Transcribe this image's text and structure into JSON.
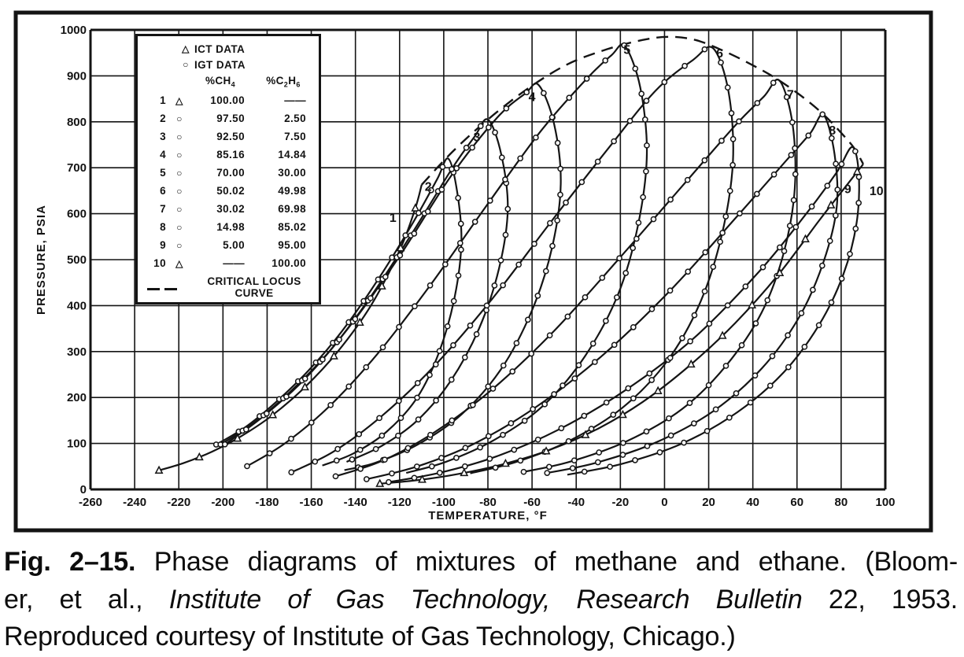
{
  "caption": {
    "line1_bold": "Fig. 2–15.",
    "line1_rest": "Phase diagrams of mixtures of methane and ethane. (Bloom-",
    "line2_pre": "er, et al., ",
    "line2_italic": "Institute of Gas Technology, Research Bulletin",
    "line2_post": " 22, 1953.",
    "line3": "Reproduced courtesy of Institute of Gas Technology, Chicago.)"
  },
  "chart_data": {
    "type": "line",
    "title": "Phase diagrams of mixtures of methane and ethane",
    "xlabel": "TEMPERATURE, °F",
    "ylabel": "PRESSURE, PSIA",
    "xlim": [
      -260,
      100
    ],
    "ylim": [
      0,
      1000
    ],
    "x_ticks": [
      -260,
      -240,
      -220,
      -200,
      -180,
      -160,
      -140,
      -120,
      -100,
      -80,
      -60,
      -40,
      -20,
      0,
      20,
      40,
      60,
      80,
      100
    ],
    "y_ticks": [
      0,
      100,
      200,
      300,
      400,
      500,
      600,
      700,
      800,
      900,
      1000
    ],
    "grid": true,
    "ink_color": "#141414",
    "legend": {
      "entries": [
        {
          "symbol": "triangle",
          "label": "ICT DATA"
        },
        {
          "symbol": "circle",
          "label": "IGT DATA"
        }
      ],
      "col1": {
        "pre": "%CH",
        "sub": "4"
      },
      "col2": {
        "pre": "%C",
        "sub1": "2",
        "mid": "H",
        "sub2": "6"
      },
      "rows": [
        {
          "num": "1",
          "symbol": "triangle",
          "ch4": "100.00",
          "c2h6": "——"
        },
        {
          "num": "2",
          "symbol": "circle",
          "ch4": "97.50",
          "c2h6": "2.50"
        },
        {
          "num": "3",
          "symbol": "circle",
          "ch4": "92.50",
          "c2h6": "7.50"
        },
        {
          "num": "4",
          "symbol": "circle",
          "ch4": "85.16",
          "c2h6": "14.84"
        },
        {
          "num": "5",
          "symbol": "circle",
          "ch4": "70.00",
          "c2h6": "30.00"
        },
        {
          "num": "6",
          "symbol": "circle",
          "ch4": "50.02",
          "c2h6": "49.98"
        },
        {
          "num": "7",
          "symbol": "circle",
          "ch4": "30.02",
          "c2h6": "69.98"
        },
        {
          "num": "8",
          "symbol": "circle",
          "ch4": "14.98",
          "c2h6": "85.02"
        },
        {
          "num": "9",
          "symbol": "circle",
          "ch4": "5.00",
          "c2h6": "95.00"
        },
        {
          "num": "10",
          "symbol": "triangle",
          "ch4": "——",
          "c2h6": "100.00"
        }
      ],
      "locus_label_line1": "CRITICAL LOCUS",
      "locus_label_line2": "CURVE"
    },
    "series": [
      {
        "name": "1",
        "pct_ch4": "100.00",
        "pct_c2h6": null,
        "marker": "triangle",
        "label_pos": [
          -123,
          582
        ],
        "points": [
          [
            -230,
            40
          ],
          [
            -218,
            57
          ],
          [
            -205,
            82
          ],
          [
            -192,
            115
          ],
          [
            -178,
            160
          ],
          [
            -163,
            222
          ],
          [
            -148,
            300
          ],
          [
            -133,
            400
          ],
          [
            -120,
            520
          ],
          [
            -113,
            610
          ],
          [
            -110,
            663
          ]
        ]
      },
      {
        "name": "2",
        "pct_ch4": "97.50",
        "pct_c2h6": "2.50",
        "marker": "circle",
        "label_pos": [
          -107,
          650
        ],
        "points": [
          [
            -204,
            95
          ],
          [
            -190,
            135
          ],
          [
            -176,
            190
          ],
          [
            -161,
            260
          ],
          [
            -146,
            345
          ],
          [
            -130,
            455
          ],
          [
            -114,
            580
          ],
          [
            -103,
            675
          ],
          [
            -98,
            720
          ],
          [
            -94,
            650
          ],
          [
            -92,
            540
          ],
          [
            -95,
            420
          ],
          [
            -102,
            300
          ],
          [
            -112,
            200
          ],
          [
            -126,
            125
          ],
          [
            -141,
            78
          ],
          [
            -155,
            52
          ]
        ]
      },
      {
        "name": "3",
        "pct_ch4": "92.50",
        "pct_c2h6": "7.50",
        "marker": "circle",
        "label_pos": [
          -85,
          758
        ],
        "points": [
          [
            -202,
            95
          ],
          [
            -186,
            145
          ],
          [
            -169,
            215
          ],
          [
            -151,
            305
          ],
          [
            -133,
            420
          ],
          [
            -114,
            560
          ],
          [
            -96,
            700
          ],
          [
            -86,
            768
          ],
          [
            -80,
            805
          ],
          [
            -74,
            730
          ],
          [
            -71,
            610
          ],
          [
            -75,
            480
          ],
          [
            -84,
            350
          ],
          [
            -97,
            235
          ],
          [
            -112,
            150
          ],
          [
            -128,
            95
          ],
          [
            -144,
            60
          ]
        ]
      },
      {
        "name": "4",
        "pct_ch4": "85.16",
        "pct_c2h6": "14.84",
        "marker": "circle",
        "label_pos": [
          -60,
          845
        ],
        "points": [
          [
            -200,
            95
          ],
          [
            -182,
            158
          ],
          [
            -162,
            245
          ],
          [
            -141,
            365
          ],
          [
            -119,
            515
          ],
          [
            -97,
            680
          ],
          [
            -76,
            808
          ],
          [
            -63,
            862
          ],
          [
            -57,
            880
          ],
          [
            -50,
            795
          ],
          [
            -47,
            665
          ],
          [
            -51,
            525
          ],
          [
            -60,
            390
          ],
          [
            -74,
            262
          ],
          [
            -92,
            163
          ],
          [
            -112,
            97
          ],
          [
            -131,
            58
          ],
          [
            -145,
            42
          ]
        ]
      },
      {
        "name": "5",
        "pct_ch4": "70.00",
        "pct_c2h6": "30.00",
        "marker": "circle",
        "label_pos": [
          -17,
          948
        ],
        "points": [
          [
            -190,
            48
          ],
          [
            -172,
            100
          ],
          [
            -152,
            180
          ],
          [
            -130,
            295
          ],
          [
            -106,
            445
          ],
          [
            -81,
            615
          ],
          [
            -56,
            780
          ],
          [
            -35,
            895
          ],
          [
            -24,
            945
          ],
          [
            -18,
            965
          ],
          [
            -11,
            875
          ],
          [
            -8,
            730
          ],
          [
            -12,
            575
          ],
          [
            -21,
            425
          ],
          [
            -36,
            290
          ],
          [
            -55,
            182
          ],
          [
            -77,
            108
          ],
          [
            -99,
            60
          ],
          [
            -117,
            36
          ]
        ]
      },
      {
        "name": "6",
        "pct_ch4": "50.02",
        "pct_c2h6": "49.98",
        "marker": "circle",
        "label_pos": [
          25,
          940
        ],
        "points": [
          [
            -170,
            35
          ],
          [
            -150,
            82
          ],
          [
            -128,
            160
          ],
          [
            -104,
            270
          ],
          [
            -78,
            415
          ],
          [
            -51,
            585
          ],
          [
            -25,
            745
          ],
          [
            -4,
            868
          ],
          [
            13,
            935
          ],
          [
            22,
            960
          ],
          [
            29,
            865
          ],
          [
            31,
            715
          ],
          [
            26,
            555
          ],
          [
            16,
            405
          ],
          [
            1,
            278
          ],
          [
            -19,
            178
          ],
          [
            -43,
            106
          ],
          [
            -67,
            60
          ],
          [
            -88,
            35
          ]
        ]
      },
      {
        "name": "7",
        "pct_ch4": "30.02",
        "pct_c2h6": "69.98",
        "marker": "circle",
        "label_pos": [
          57,
          850
        ],
        "points": [
          [
            -150,
            27
          ],
          [
            -128,
            62
          ],
          [
            -104,
            125
          ],
          [
            -78,
            218
          ],
          [
            -50,
            345
          ],
          [
            -21,
            500
          ],
          [
            8,
            660
          ],
          [
            32,
            792
          ],
          [
            45,
            855
          ],
          [
            52,
            890
          ],
          [
            58,
            795
          ],
          [
            59,
            655
          ],
          [
            54,
            515
          ],
          [
            44,
            385
          ],
          [
            28,
            270
          ],
          [
            8,
            175
          ],
          [
            -17,
            105
          ],
          [
            -43,
            60
          ],
          [
            -65,
            37
          ]
        ]
      },
      {
        "name": "8",
        "pct_ch4": "14.98",
        "pct_c2h6": "85.02",
        "marker": "circle",
        "label_pos": [
          76,
          772
        ],
        "points": [
          [
            -136,
            21
          ],
          [
            -112,
            50
          ],
          [
            -86,
            100
          ],
          [
            -58,
            180
          ],
          [
            -28,
            292
          ],
          [
            3,
            435
          ],
          [
            33,
            595
          ],
          [
            55,
            715
          ],
          [
            66,
            775
          ],
          [
            72,
            815
          ],
          [
            77,
            730
          ],
          [
            78,
            615
          ],
          [
            72,
            495
          ],
          [
            61,
            375
          ],
          [
            44,
            263
          ],
          [
            22,
            170
          ],
          [
            -4,
            102
          ],
          [
            -31,
            58
          ],
          [
            -54,
            35
          ]
        ]
      },
      {
        "name": "9",
        "pct_ch4": "5.00",
        "pct_c2h6": "95.00",
        "marker": "circle",
        "label_pos": [
          83,
          645
        ],
        "points": [
          [
            -126,
            15
          ],
          [
            -102,
            36
          ],
          [
            -76,
            72
          ],
          [
            -48,
            130
          ],
          [
            -18,
            215
          ],
          [
            13,
            328
          ],
          [
            43,
            475
          ],
          [
            65,
            605
          ],
          [
            78,
            690
          ],
          [
            85,
            745
          ],
          [
            88,
            685
          ],
          [
            87,
            580
          ],
          [
            81,
            468
          ],
          [
            70,
            358
          ],
          [
            54,
            255
          ],
          [
            33,
            168
          ],
          [
            8,
            100
          ],
          [
            -19,
            56
          ],
          [
            -44,
            32
          ]
        ]
      },
      {
        "name": "10",
        "pct_ch4": null,
        "pct_c2h6": "100.00",
        "marker": "triangle",
        "label_pos": [
          96,
          640
        ],
        "points": [
          [
            -130,
            12
          ],
          [
            -112,
            20
          ],
          [
            -93,
            34
          ],
          [
            -73,
            55
          ],
          [
            -52,
            86
          ],
          [
            -31,
            130
          ],
          [
            -10,
            190
          ],
          [
            11,
            268
          ],
          [
            32,
            362
          ],
          [
            52,
            470
          ],
          [
            70,
            585
          ],
          [
            83,
            665
          ],
          [
            90,
            708
          ]
        ]
      }
    ],
    "critical_locus": {
      "style": "dashed",
      "points": [
        [
          -110,
          663
        ],
        [
          -96,
          735
        ],
        [
          -80,
          805
        ],
        [
          -62,
          872
        ],
        [
          -44,
          925
        ],
        [
          -26,
          958
        ],
        [
          -10,
          978
        ],
        [
          2,
          985
        ],
        [
          14,
          978
        ],
        [
          26,
          956
        ],
        [
          38,
          928
        ],
        [
          50,
          896
        ],
        [
          62,
          856
        ],
        [
          72,
          816
        ],
        [
          80,
          776
        ],
        [
          86,
          742
        ],
        [
          90,
          708
        ]
      ]
    }
  }
}
